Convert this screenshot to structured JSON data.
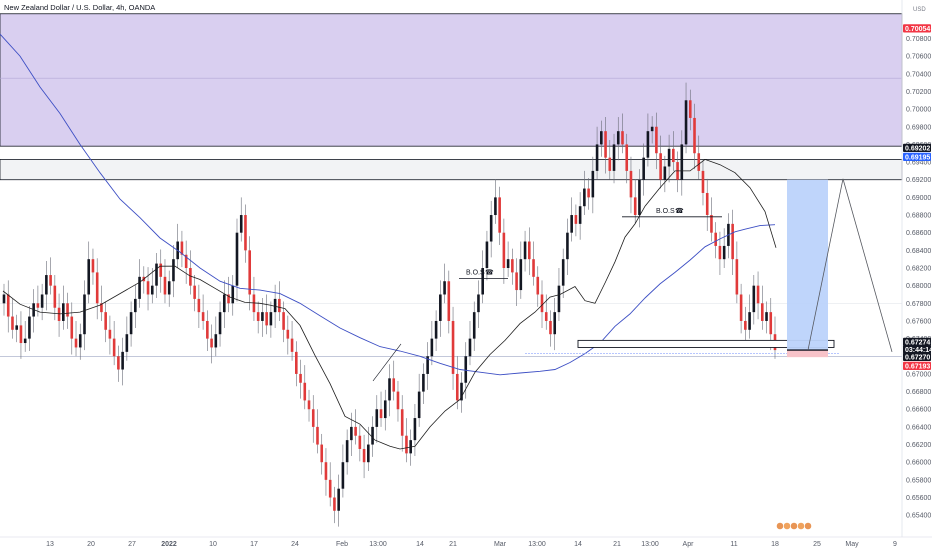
{
  "header": {
    "symbol": "New Zealand Dollar / U.S. Dollar, 4h, OANDA",
    "indicator1": "MA",
    "indicator2": "MA"
  },
  "price_axis": {
    "unit": "USD"
  },
  "chart_data": {
    "type": "candlestick",
    "title": "New Zealand Dollar / U.S. Dollar, 4h, OANDA",
    "ylim": [
      0.653,
      0.711
    ],
    "y_ticks": [
      "0.65400",
      "0.65600",
      "0.65800",
      "0.66000",
      "0.66200",
      "0.66400",
      "0.66600",
      "0.66800",
      "0.67000",
      "0.67200",
      "0.67400",
      "0.67600",
      "0.67800",
      "0.68000",
      "0.68200",
      "0.68400",
      "0.68600",
      "0.68800",
      "0.69000",
      "0.69200",
      "0.69400",
      "0.69600",
      "0.69800",
      "0.70000",
      "0.70200",
      "0.70400",
      "0.70600",
      "0.70800"
    ],
    "x_ticks": [
      "13",
      "20",
      "27",
      "2022",
      "10",
      "17",
      "24",
      "Feb",
      "13:00",
      "14",
      "21",
      "Mar",
      "13:00",
      "14",
      "21",
      "13:00",
      "Apr",
      "11",
      "18",
      "25",
      "May",
      "9"
    ],
    "price_tags": [
      {
        "label": "0.70054",
        "color": "#f23645"
      },
      {
        "label": "0.69202",
        "color": "#131722"
      },
      {
        "label": "0.69195",
        "color": "#2962ff"
      },
      {
        "label": "0.67274",
        "color": "#131722"
      },
      {
        "label": "03:44:14",
        "color": "#131722"
      },
      {
        "label": "0.67270",
        "color": "#131722"
      },
      {
        "label": "0.67193",
        "color": "#f23645"
      }
    ],
    "annotations": [
      "B.O.S",
      "B.O.S"
    ],
    "supply_zone": [
      0.6958,
      0.7108
    ],
    "resistance_zone": [
      0.692,
      0.6943
    ],
    "support_zone": [
      0.673,
      0.6738
    ],
    "position": {
      "entry": 0.6727,
      "target": 0.692,
      "stop": 0.6719
    },
    "ma_fast": [
      [
        3,
        0.6794
      ],
      [
        20,
        0.6779
      ],
      [
        40,
        0.677
      ],
      [
        60,
        0.6768
      ],
      [
        80,
        0.677
      ],
      [
        100,
        0.6778
      ],
      [
        120,
        0.6791
      ],
      [
        140,
        0.6804
      ],
      [
        160,
        0.6822
      ],
      [
        175,
        0.6822
      ],
      [
        190,
        0.6811
      ],
      [
        200,
        0.6807
      ],
      [
        215,
        0.6797
      ],
      [
        230,
        0.6787
      ],
      [
        245,
        0.6781
      ],
      [
        260,
        0.678
      ],
      [
        270,
        0.6778
      ],
      [
        285,
        0.6774
      ],
      [
        300,
        0.6755
      ],
      [
        315,
        0.6721
      ],
      [
        330,
        0.6689
      ],
      [
        345,
        0.6652
      ],
      [
        360,
        0.6643
      ],
      [
        375,
        0.6625
      ],
      [
        390,
        0.6618
      ],
      [
        400,
        0.6615
      ],
      [
        415,
        0.6618
      ],
      [
        430,
        0.664
      ],
      [
        445,
        0.6658
      ],
      [
        460,
        0.6671
      ],
      [
        475,
        0.6702
      ],
      [
        490,
        0.6722
      ],
      [
        505,
        0.6738
      ],
      [
        520,
        0.6757
      ],
      [
        535,
        0.677
      ],
      [
        550,
        0.6787
      ],
      [
        560,
        0.679
      ],
      [
        575,
        0.6799
      ],
      [
        585,
        0.6783
      ],
      [
        595,
        0.678
      ],
      [
        605,
        0.6803
      ],
      [
        615,
        0.6827
      ],
      [
        625,
        0.6855
      ],
      [
        635,
        0.687
      ],
      [
        645,
        0.689
      ],
      [
        660,
        0.6911
      ],
      [
        675,
        0.693
      ],
      [
        690,
        0.693
      ],
      [
        705,
        0.6943
      ],
      [
        720,
        0.6937
      ],
      [
        735,
        0.6928
      ],
      [
        750,
        0.6911
      ],
      [
        765,
        0.6884
      ],
      [
        776,
        0.6843
      ]
    ],
    "ma_slow": [
      [
        0,
        0.7085
      ],
      [
        20,
        0.706
      ],
      [
        40,
        0.7025
      ],
      [
        60,
        0.6995
      ],
      [
        80,
        0.696
      ],
      [
        100,
        0.6928
      ],
      [
        120,
        0.6898
      ],
      [
        140,
        0.6877
      ],
      [
        160,
        0.6854
      ],
      [
        180,
        0.6838
      ],
      [
        200,
        0.682
      ],
      [
        220,
        0.6805
      ],
      [
        240,
        0.6797
      ],
      [
        260,
        0.6795
      ],
      [
        280,
        0.6791
      ],
      [
        300,
        0.678
      ],
      [
        320,
        0.6766
      ],
      [
        340,
        0.6752
      ],
      [
        360,
        0.6741
      ],
      [
        380,
        0.6731
      ],
      [
        400,
        0.6726
      ],
      [
        420,
        0.672
      ],
      [
        440,
        0.6712
      ],
      [
        460,
        0.6705
      ],
      [
        480,
        0.6702
      ],
      [
        500,
        0.6699
      ],
      [
        520,
        0.6701
      ],
      [
        540,
        0.6703
      ],
      [
        555,
        0.6705
      ],
      [
        570,
        0.6713
      ],
      [
        585,
        0.6723
      ],
      [
        600,
        0.6735
      ],
      [
        615,
        0.6754
      ],
      [
        630,
        0.6768
      ],
      [
        645,
        0.6786
      ],
      [
        660,
        0.6802
      ],
      [
        675,
        0.6815
      ],
      [
        690,
        0.6829
      ],
      [
        705,
        0.6844
      ],
      [
        720,
        0.6853
      ],
      [
        735,
        0.6861
      ],
      [
        745,
        0.6864
      ],
      [
        760,
        0.6868
      ],
      [
        775,
        0.6869
      ]
    ],
    "candles": [
      [
        0.678,
        0.679
      ],
      [
        0.679,
        0.6765
      ],
      [
        0.6765,
        0.675
      ],
      [
        0.675,
        0.6755
      ],
      [
        0.6755,
        0.6735
      ],
      [
        0.6735,
        0.674
      ],
      [
        0.674,
        0.6765
      ],
      [
        0.6765,
        0.678
      ],
      [
        0.678,
        0.6775
      ],
      [
        0.6775,
        0.679
      ],
      [
        0.679,
        0.6812
      ],
      [
        0.6812,
        0.68
      ],
      [
        0.68,
        0.6775
      ],
      [
        0.6775,
        0.676
      ],
      [
        0.676,
        0.678
      ],
      [
        0.678,
        0.6765
      ],
      [
        0.6765,
        0.674
      ],
      [
        0.674,
        0.673
      ],
      [
        0.673,
        0.6745
      ],
      [
        0.6745,
        0.679
      ],
      [
        0.679,
        0.683
      ],
      [
        0.683,
        0.6815
      ],
      [
        0.6815,
        0.678
      ],
      [
        0.678,
        0.677
      ],
      [
        0.677,
        0.675
      ],
      [
        0.675,
        0.674
      ],
      [
        0.674,
        0.672
      ],
      [
        0.672,
        0.6705
      ],
      [
        0.6705,
        0.6725
      ],
      [
        0.6725,
        0.6745
      ],
      [
        0.6745,
        0.677
      ],
      [
        0.677,
        0.6785
      ],
      [
        0.6785,
        0.681
      ],
      [
        0.681,
        0.6805
      ],
      [
        0.6805,
        0.679
      ],
      [
        0.679,
        0.68
      ],
      [
        0.68,
        0.6825
      ],
      [
        0.6825,
        0.681
      ],
      [
        0.681,
        0.679
      ],
      [
        0.679,
        0.6805
      ],
      [
        0.6805,
        0.683
      ],
      [
        0.683,
        0.685
      ],
      [
        0.685,
        0.6835
      ],
      [
        0.6835,
        0.682
      ],
      [
        0.682,
        0.68
      ],
      [
        0.68,
        0.6785
      ],
      [
        0.6785,
        0.677
      ],
      [
        0.677,
        0.676
      ],
      [
        0.676,
        0.674
      ],
      [
        0.674,
        0.673
      ],
      [
        0.673,
        0.6745
      ],
      [
        0.6745,
        0.677
      ],
      [
        0.677,
        0.679
      ],
      [
        0.679,
        0.678
      ],
      [
        0.678,
        0.68
      ],
      [
        0.68,
        0.686
      ],
      [
        0.686,
        0.688
      ],
      [
        0.688,
        0.684
      ],
      [
        0.684,
        0.679
      ],
      [
        0.679,
        0.677
      ],
      [
        0.677,
        0.676
      ],
      [
        0.676,
        0.677
      ],
      [
        0.677,
        0.6755
      ],
      [
        0.6755,
        0.677
      ],
      [
        0.677,
        0.6785
      ],
      [
        0.6785,
        0.677
      ],
      [
        0.677,
        0.675
      ],
      [
        0.675,
        0.674
      ],
      [
        0.674,
        0.6725
      ],
      [
        0.6725,
        0.67
      ],
      [
        0.67,
        0.669
      ],
      [
        0.669,
        0.667
      ],
      [
        0.667,
        0.666
      ],
      [
        0.666,
        0.664
      ],
      [
        0.664,
        0.662
      ],
      [
        0.662,
        0.66
      ],
      [
        0.66,
        0.658
      ],
      [
        0.658,
        0.656
      ],
      [
        0.656,
        0.6545
      ],
      [
        0.6545,
        0.657
      ],
      [
        0.657,
        0.66
      ],
      [
        0.66,
        0.6625
      ],
      [
        0.6625,
        0.664
      ],
      [
        0.664,
        0.663
      ],
      [
        0.663,
        0.6615
      ],
      [
        0.6615,
        0.66
      ],
      [
        0.66,
        0.662
      ],
      [
        0.662,
        0.664
      ],
      [
        0.664,
        0.666
      ],
      [
        0.666,
        0.665
      ],
      [
        0.665,
        0.667
      ],
      [
        0.667,
        0.6695
      ],
      [
        0.6695,
        0.668
      ],
      [
        0.668,
        0.666
      ],
      [
        0.666,
        0.663
      ],
      [
        0.663,
        0.661
      ],
      [
        0.661,
        0.6625
      ],
      [
        0.6625,
        0.665
      ],
      [
        0.665,
        0.668
      ],
      [
        0.668,
        0.67
      ],
      [
        0.67,
        0.672
      ],
      [
        0.672,
        0.674
      ],
      [
        0.674,
        0.676
      ],
      [
        0.676,
        0.679
      ],
      [
        0.679,
        0.6805
      ],
      [
        0.6805,
        0.676
      ],
      [
        0.676,
        0.67
      ],
      [
        0.67,
        0.667
      ],
      [
        0.667,
        0.669
      ],
      [
        0.669,
        0.672
      ],
      [
        0.672,
        0.674
      ],
      [
        0.674,
        0.677
      ],
      [
        0.677,
        0.679
      ],
      [
        0.679,
        0.682
      ],
      [
        0.682,
        0.685
      ],
      [
        0.685,
        0.688
      ],
      [
        0.688,
        0.69
      ],
      [
        0.69,
        0.686
      ],
      [
        0.686,
        0.682
      ],
      [
        0.682,
        0.683
      ],
      [
        0.683,
        0.6815
      ],
      [
        0.6815,
        0.6795
      ],
      [
        0.6795,
        0.683
      ],
      [
        0.683,
        0.685
      ],
      [
        0.685,
        0.683
      ],
      [
        0.683,
        0.681
      ],
      [
        0.681,
        0.679
      ],
      [
        0.679,
        0.677
      ],
      [
        0.677,
        0.676
      ],
      [
        0.676,
        0.6745
      ],
      [
        0.6745,
        0.677
      ],
      [
        0.677,
        0.68
      ],
      [
        0.68,
        0.683
      ],
      [
        0.683,
        0.686
      ],
      [
        0.686,
        0.688
      ],
      [
        0.688,
        0.687
      ],
      [
        0.687,
        0.689
      ],
      [
        0.689,
        0.691
      ],
      [
        0.691,
        0.69
      ],
      [
        0.69,
        0.693
      ],
      [
        0.693,
        0.696
      ],
      [
        0.696,
        0.6975
      ],
      [
        0.6975,
        0.6945
      ],
      [
        0.6945,
        0.693
      ],
      [
        0.693,
        0.696
      ],
      [
        0.696,
        0.6975
      ],
      [
        0.6975,
        0.696
      ],
      [
        0.696,
        0.693
      ],
      [
        0.693,
        0.69
      ],
      [
        0.69,
        0.688
      ],
      [
        0.688,
        0.692
      ],
      [
        0.692,
        0.6945
      ],
      [
        0.6945,
        0.6975
      ],
      [
        0.6975,
        0.698
      ],
      [
        0.698,
        0.695
      ],
      [
        0.695,
        0.692
      ],
      [
        0.692,
        0.6935
      ],
      [
        0.6935,
        0.6955
      ],
      [
        0.6955,
        0.694
      ],
      [
        0.694,
        0.692
      ],
      [
        0.692,
        0.696
      ],
      [
        0.696,
        0.701
      ],
      [
        0.701,
        0.699
      ],
      [
        0.699,
        0.695
      ],
      [
        0.695,
        0.693
      ],
      [
        0.693,
        0.6905
      ],
      [
        0.6905,
        0.688
      ],
      [
        0.688,
        0.686
      ],
      [
        0.686,
        0.6845
      ],
      [
        0.6845,
        0.683
      ],
      [
        0.683,
        0.6845
      ],
      [
        0.6845,
        0.687
      ],
      [
        0.687,
        0.683
      ],
      [
        0.683,
        0.679
      ],
      [
        0.679,
        0.676
      ],
      [
        0.676,
        0.675
      ],
      [
        0.675,
        0.677
      ],
      [
        0.677,
        0.68
      ],
      [
        0.68,
        0.678
      ],
      [
        0.678,
        0.676
      ],
      [
        0.676,
        0.677
      ],
      [
        0.677,
        0.6745
      ],
      [
        0.6745,
        0.6727
      ]
    ]
  }
}
